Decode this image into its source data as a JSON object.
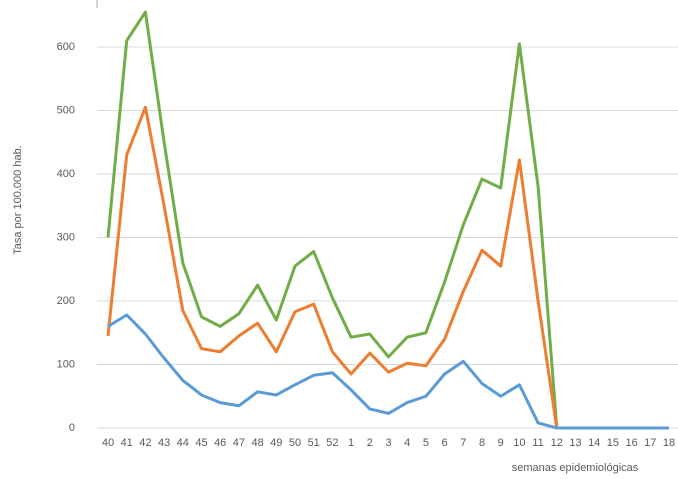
{
  "chart_data": {
    "type": "line",
    "y_label": "Tasa por 100.000 hab.",
    "x_label": "semanas epidemiológicas",
    "categories": [
      "40",
      "41",
      "42",
      "43",
      "44",
      "45",
      "46",
      "47",
      "48",
      "49",
      "50",
      "51",
      "52",
      "1",
      "2",
      "3",
      "4",
      "5",
      "6",
      "7",
      "8",
      "9",
      "10",
      "11",
      "12",
      "13",
      "14",
      "15",
      "16",
      "17",
      "18"
    ],
    "series": [
      {
        "color": "#70ad47",
        "values": [
          300,
          610,
          655,
          450,
          260,
          175,
          160,
          180,
          225,
          170,
          255,
          278,
          205,
          143,
          148,
          112,
          143,
          150,
          230,
          320,
          392,
          378,
          605,
          380,
          0,
          0,
          0,
          0,
          0,
          0,
          0
        ]
      },
      {
        "color": "#ed7d31",
        "values": [
          145,
          430,
          505,
          350,
          185,
          125,
          120,
          145,
          165,
          120,
          183,
          195,
          120,
          85,
          118,
          88,
          102,
          98,
          140,
          215,
          280,
          255,
          422,
          200,
          0,
          0,
          0,
          0,
          0,
          0,
          0
        ]
      },
      {
        "color": "#5b9bd5",
        "values": [
          160,
          178,
          148,
          110,
          75,
          52,
          40,
          35,
          57,
          52,
          68,
          83,
          87,
          60,
          30,
          23,
          40,
          50,
          85,
          105,
          70,
          50,
          68,
          8,
          0,
          0,
          0,
          0,
          0,
          0,
          0
        ]
      }
    ],
    "ylim": [
      0,
      674
    ],
    "yticks": [
      0,
      100,
      200,
      300,
      400,
      500,
      600
    ],
    "grid": true
  }
}
